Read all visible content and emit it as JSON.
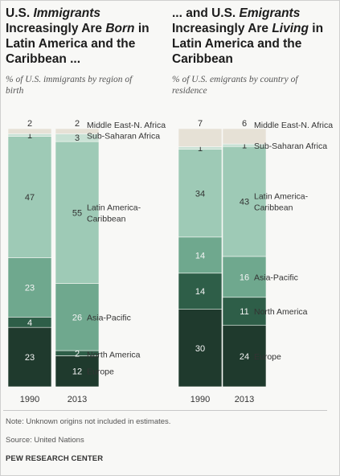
{
  "left_panel": {
    "title_parts": [
      "U.S. ",
      "Immigrants",
      "Increasingly Are ",
      "Born",
      " in",
      "Latin America and the",
      "Caribbean ..."
    ],
    "subtitle_lines": [
      "% of U.S. immigrants by region of",
      "birth"
    ]
  },
  "right_panel": {
    "title_parts": [
      "... and U.S. ",
      "Emigrants",
      "Increasingly Are ",
      "Living",
      " in",
      "Latin America and the",
      "Caribbean"
    ],
    "subtitle_lines": [
      "% of U.S. emigrants by country of",
      "residence"
    ]
  },
  "footer": {
    "note": "Note: Unknown origins not included in estimates.",
    "source": "Source: United Nations",
    "org": "PEW RESEARCH CENTER"
  },
  "colors": {
    "Europe": "#1f3a2d",
    "North America": "#2e5e48",
    "Asia-Pacific": "#6fa88e",
    "Latin America-Caribbean": "#9ecab6",
    "Sub-Saharan Africa": "#c8e1d4",
    "Middle East-N. Africa": "#e6e1d6"
  },
  "chart_data": [
    {
      "type": "bar",
      "stacked": true,
      "categories": [
        "1990",
        "2013"
      ],
      "series": [
        {
          "name": "Europe",
          "values": [
            23,
            12
          ]
        },
        {
          "name": "North America",
          "values": [
            4,
            2
          ]
        },
        {
          "name": "Asia-Pacific",
          "values": [
            23,
            26
          ]
        },
        {
          "name": "Latin America-Caribbean",
          "values": [
            47,
            55
          ]
        },
        {
          "name": "Sub-Saharan Africa",
          "values": [
            1,
            3
          ]
        },
        {
          "name": "Middle East-N. Africa",
          "values": [
            2,
            2
          ]
        }
      ],
      "legend_labels": [
        {
          "series": "Middle East-N. Africa",
          "text": [
            "Middle East-N. Africa"
          ]
        },
        {
          "series": "Sub-Saharan Africa",
          "text": [
            "Sub-Saharan Africa"
          ]
        },
        {
          "series": "Latin America-Caribbean",
          "text": [
            "Latin America-",
            "Caribbean"
          ]
        },
        {
          "series": "Asia-Pacific",
          "text": [
            "Asia-Pacific"
          ]
        },
        {
          "series": "North America",
          "text": [
            "North America"
          ]
        },
        {
          "series": "Europe",
          "text": [
            "Europe"
          ]
        }
      ]
    },
    {
      "type": "bar",
      "stacked": true,
      "categories": [
        "1990",
        "2013"
      ],
      "series": [
        {
          "name": "Europe",
          "values": [
            30,
            24
          ]
        },
        {
          "name": "North America",
          "values": [
            14,
            11
          ]
        },
        {
          "name": "Asia-Pacific",
          "values": [
            14,
            16
          ]
        },
        {
          "name": "Latin America-Caribbean",
          "values": [
            34,
            43
          ]
        },
        {
          "name": "Sub-Saharan Africa",
          "values": [
            1,
            1
          ]
        },
        {
          "name": "Middle East-N. Africa",
          "values": [
            7,
            6
          ]
        }
      ],
      "legend_labels": [
        {
          "series": "Middle East-N. Africa",
          "text": [
            "Middle East-N. Africa"
          ]
        },
        {
          "series": "Sub-Saharan Africa",
          "text": [
            "Sub-Saharan Africa"
          ]
        },
        {
          "series": "Latin America-Caribbean",
          "text": [
            "Latin America-",
            "Caribbean"
          ]
        },
        {
          "series": "Asia-Pacific",
          "text": [
            "Asia-Pacific"
          ]
        },
        {
          "series": "North America",
          "text": [
            "North America"
          ]
        },
        {
          "series": "Europe",
          "text": [
            "Europe"
          ]
        }
      ]
    }
  ]
}
